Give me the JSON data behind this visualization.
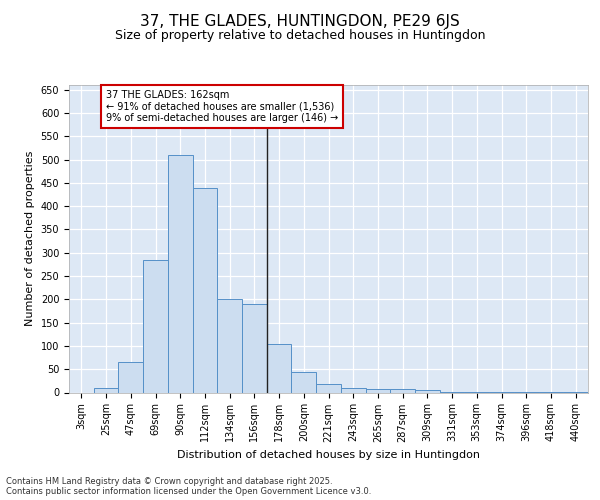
{
  "title": "37, THE GLADES, HUNTINGDON, PE29 6JS",
  "subtitle": "Size of property relative to detached houses in Huntingdon",
  "xlabel": "Distribution of detached houses by size in Huntingdon",
  "ylabel": "Number of detached properties",
  "categories": [
    "3sqm",
    "25sqm",
    "47sqm",
    "69sqm",
    "90sqm",
    "112sqm",
    "134sqm",
    "156sqm",
    "178sqm",
    "200sqm",
    "221sqm",
    "243sqm",
    "265sqm",
    "287sqm",
    "309sqm",
    "331sqm",
    "353sqm",
    "374sqm",
    "396sqm",
    "418sqm",
    "440sqm"
  ],
  "values": [
    0,
    10,
    65,
    285,
    510,
    440,
    200,
    190,
    105,
    45,
    18,
    10,
    8,
    8,
    5,
    2,
    2,
    2,
    1,
    2,
    2
  ],
  "bar_color": "#ccddf0",
  "bar_edge_color": "#5590c8",
  "vline_color": "#222222",
  "annotation_text": "37 THE GLADES: 162sqm\n← 91% of detached houses are smaller (1,536)\n9% of semi-detached houses are larger (146) →",
  "annotation_box_color": "#ffffff",
  "annotation_box_edge": "#cc0000",
  "bg_color": "#dde8f5",
  "grid_color": "#ffffff",
  "ylim": [
    0,
    660
  ],
  "yticks": [
    0,
    50,
    100,
    150,
    200,
    250,
    300,
    350,
    400,
    450,
    500,
    550,
    600,
    650
  ],
  "footer_text": "Contains HM Land Registry data © Crown copyright and database right 2025.\nContains public sector information licensed under the Open Government Licence v3.0.",
  "title_fontsize": 11,
  "subtitle_fontsize": 9,
  "tick_fontsize": 7,
  "ylabel_fontsize": 8,
  "xlabel_fontsize": 8,
  "footer_fontsize": 6,
  "annotation_fontsize": 7
}
